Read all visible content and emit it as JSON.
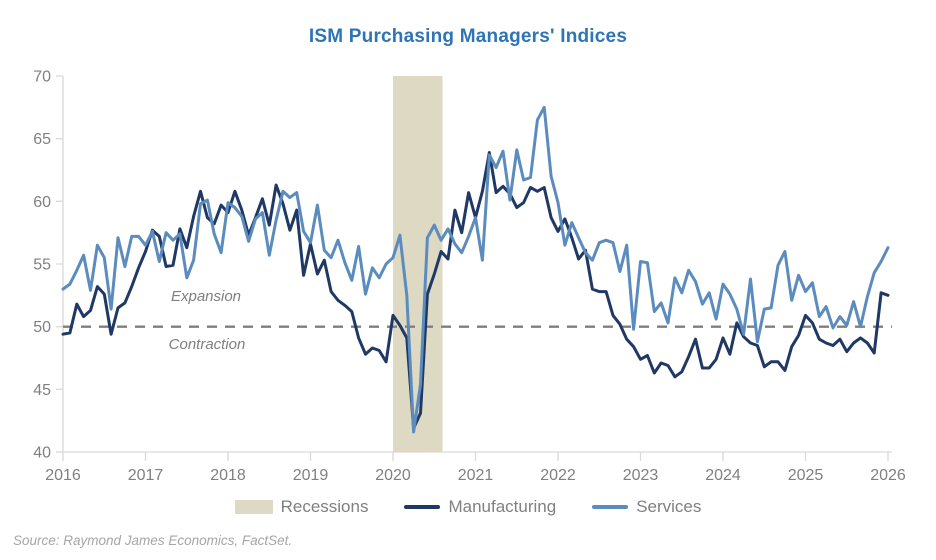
{
  "title": "ISM Purchasing Managers' Indices",
  "source": "Source: Raymond James Economics, FactSet.",
  "labels": {
    "expansion": "Expansion",
    "contraction": "Contraction"
  },
  "colors": {
    "title": "#2E75B6",
    "manufacturing": "#1F3864",
    "services": "#5B8CBD",
    "recession_band": "#DDD9C3",
    "reference_line": "#7F7F7F",
    "axis": "#D9D9D9",
    "tick_labels": "#808080",
    "legend_text": "#808080",
    "source_text": "#A6A6A6"
  },
  "legend": [
    {
      "label": "Recessions",
      "type": "box",
      "color": "#DDD9C3"
    },
    {
      "label": "Manufacturing",
      "type": "line",
      "color": "#1F3864"
    },
    {
      "label": "Services",
      "type": "line",
      "color": "#5B8CBD"
    }
  ],
  "chart_data": {
    "type": "line",
    "title": "ISM Purchasing Managers' Indices",
    "xlabel": "",
    "ylabel": "",
    "grid": false,
    "legend_position": "bottom",
    "xlim": [
      2016,
      2026
    ],
    "ylim": [
      40,
      70
    ],
    "x_ticks": [
      2016,
      2017,
      2018,
      2019,
      2020,
      2021,
      2022,
      2023,
      2024,
      2025,
      2026
    ],
    "y_ticks": [
      40,
      45,
      50,
      55,
      60,
      65,
      70
    ],
    "x_start": 2016,
    "x_interval_months": 1,
    "reference_line": {
      "value": 50,
      "style": "dashed",
      "color": "#7F7F7F"
    },
    "recession_bands": [
      {
        "from": 2020.0,
        "to": 2020.6
      }
    ],
    "annotations": [
      {
        "text": "Expansion",
        "x": 2017.75,
        "y": 52.3
      },
      {
        "text": "Contraction",
        "x": 2017.75,
        "y": 48.0
      }
    ],
    "series": [
      {
        "name": "Manufacturing",
        "color": "#1F3864",
        "values": [
          49.4,
          49.5,
          51.8,
          50.8,
          51.3,
          53.2,
          52.6,
          49.4,
          51.5,
          51.9,
          53.2,
          54.7,
          56.0,
          57.7,
          57.2,
          54.8,
          54.9,
          57.8,
          56.3,
          58.8,
          60.8,
          58.7,
          58.2,
          59.7,
          59.1,
          60.8,
          59.3,
          57.3,
          58.7,
          60.2,
          58.1,
          61.3,
          59.8,
          57.7,
          59.3,
          54.1,
          56.6,
          54.2,
          55.3,
          52.8,
          52.1,
          51.7,
          51.2,
          49.1,
          47.8,
          48.3,
          48.1,
          47.2,
          50.9,
          50.1,
          49.1,
          41.9,
          43.1,
          52.6,
          54.2,
          56.0,
          55.4,
          59.3,
          57.5,
          60.7,
          58.7,
          60.8,
          63.9,
          60.7,
          61.2,
          60.6,
          59.5,
          59.9,
          61.1,
          60.8,
          61.1,
          58.7,
          57.6,
          58.6,
          57.1,
          55.4,
          56.1,
          53.0,
          52.8,
          52.8,
          50.9,
          50.2,
          49.0,
          48.4,
          47.4,
          47.7,
          46.3,
          47.1,
          46.9,
          46.0,
          46.4,
          47.6,
          49.0,
          46.7,
          46.7,
          47.4,
          49.1,
          47.8,
          50.3,
          49.2,
          48.7,
          48.5,
          46.8,
          47.2,
          47.2,
          46.5,
          48.4,
          49.3,
          50.9,
          50.3,
          49.0,
          48.7,
          48.5,
          49.0,
          48.0,
          48.7,
          49.1,
          48.7,
          47.9,
          52.7,
          52.5
        ]
      },
      {
        "name": "Services",
        "color": "#5B8CBD",
        "values": [
          53.0,
          53.4,
          54.5,
          55.7,
          52.9,
          56.5,
          55.5,
          51.4,
          57.1,
          54.8,
          57.2,
          57.2,
          56.5,
          57.6,
          55.2,
          57.5,
          56.9,
          57.4,
          53.9,
          55.3,
          59.8,
          60.1,
          57.4,
          55.9,
          59.9,
          59.5,
          58.8,
          56.8,
          58.6,
          59.1,
          55.7,
          58.5,
          60.8,
          60.3,
          60.7,
          57.6,
          56.7,
          59.7,
          56.1,
          55.5,
          56.9,
          55.1,
          53.7,
          56.4,
          52.6,
          54.7,
          53.9,
          55.0,
          55.5,
          57.3,
          52.5,
          41.6,
          45.4,
          57.1,
          58.1,
          56.9,
          57.8,
          56.6,
          55.9,
          57.2,
          58.7,
          55.3,
          63.7,
          62.7,
          64.0,
          60.1,
          64.1,
          61.7,
          61.9,
          66.5,
          67.5,
          62.0,
          59.9,
          56.5,
          58.3,
          57.1,
          55.9,
          55.3,
          56.7,
          56.9,
          56.7,
          54.4,
          56.5,
          49.8,
          55.2,
          55.1,
          51.2,
          51.9,
          50.3,
          53.9,
          52.7,
          54.5,
          53.6,
          51.8,
          52.7,
          50.6,
          53.4,
          52.6,
          51.4,
          49.4,
          53.8,
          48.8,
          51.4,
          51.5,
          54.9,
          56.0,
          52.1,
          54.1,
          52.8,
          53.5,
          50.8,
          51.6,
          49.9,
          50.8,
          50.1,
          52.0,
          50.0,
          52.4,
          54.3,
          55.2,
          56.3
        ]
      }
    ]
  }
}
